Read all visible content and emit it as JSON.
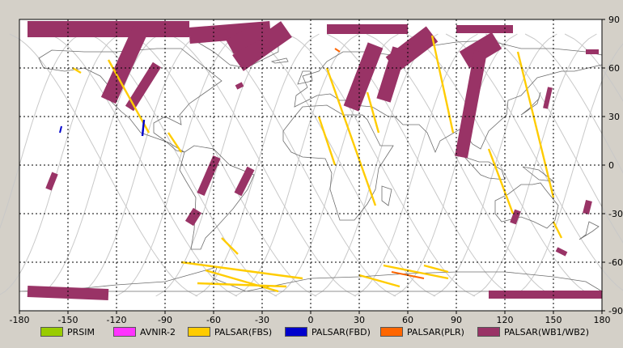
{
  "map": {
    "lon_min": -180,
    "lon_max": 180,
    "lat_min": -90,
    "lat_max": 90,
    "x_ticks": [
      "-180",
      "-150",
      "-120",
      "-90",
      "-60",
      "-30",
      "0",
      "30",
      "60",
      "90",
      "120",
      "150",
      "180"
    ],
    "y_ticks": [
      "90",
      "60",
      "30",
      "0",
      "-30",
      "-60",
      "-90"
    ],
    "grid": "dotted",
    "background": "#ffffff",
    "coastline_color": "#6e6e6e",
    "orbit_color": "#c8c8c8",
    "gridline_color": "#000000"
  },
  "legend": [
    {
      "label": "PRSIM",
      "color": "#99cc00"
    },
    {
      "label": "AVNIR-2",
      "color": "#ff33ff"
    },
    {
      "label": "PALSAR(FBS)",
      "color": "#ffcc00"
    },
    {
      "label": "PALSAR(FBD)",
      "color": "#0000cc"
    },
    {
      "label": "PALSAR(PLR)",
      "color": "#ff6600"
    },
    {
      "label": "PALSAR(WB1/WB2)",
      "color": "#993366"
    }
  ],
  "swaths": [
    {
      "mode": "PALSAR(WB1/WB2)",
      "lon1": -175,
      "lat1": 84,
      "lon2": -75,
      "lat2": 84,
      "width": 10
    },
    {
      "mode": "PALSAR(WB1/WB2)",
      "lon1": -105,
      "lat1": 84,
      "lon2": -125,
      "lat2": 40,
      "width": 10
    },
    {
      "mode": "PALSAR(WB1/WB2)",
      "lon1": -25,
      "lat1": 84,
      "lon2": -75,
      "lat2": 80,
      "width": 10
    },
    {
      "mode": "PALSAR(WB1/WB2)",
      "lon1": -15,
      "lat1": 84,
      "lon2": -45,
      "lat2": 63,
      "width": 12
    },
    {
      "mode": "PALSAR(WB1/WB2)",
      "lon1": -30,
      "lat1": 84,
      "lon2": -50,
      "lat2": 73,
      "width": 10
    },
    {
      "mode": "PALSAR(WB1/WB2)",
      "lon1": 10,
      "lat1": 84,
      "lon2": 60,
      "lat2": 84,
      "width": 6
    },
    {
      "mode": "PALSAR(WB1/WB2)",
      "lon1": 40,
      "lat1": 74,
      "lon2": 25,
      "lat2": 35,
      "width": 10
    },
    {
      "mode": "PALSAR(WB1/WB2)",
      "lon1": 75,
      "lat1": 81,
      "lon2": 50,
      "lat2": 62,
      "width": 12
    },
    {
      "mode": "PALSAR(WB1/WB2)",
      "lon1": 55,
      "lat1": 72,
      "lon2": 45,
      "lat2": 40,
      "width": 9
    },
    {
      "mode": "PALSAR(WB1/WB2)",
      "lon1": 90,
      "lat1": 84,
      "lon2": 125,
      "lat2": 84,
      "width": 5
    },
    {
      "mode": "PALSAR(WB1/WB2)",
      "lon1": 115,
      "lat1": 77,
      "lon2": 95,
      "lat2": 65,
      "width": 12
    },
    {
      "mode": "PALSAR(WB1/WB2)",
      "lon1": 105,
      "lat1": 70,
      "lon2": 93,
      "lat2": 5,
      "width": 8
    },
    {
      "mode": "PALSAR(WB1/WB2)",
      "lon1": -95,
      "lat1": 62,
      "lon2": -112,
      "lat2": 35,
      "width": 6
    },
    {
      "mode": "PALSAR(WB1/WB2)",
      "lon1": -58,
      "lat1": 5,
      "lon2": -68,
      "lat2": -18,
      "width": 5
    },
    {
      "mode": "PALSAR(WB1/WB2)",
      "lon1": -37,
      "lat1": -2,
      "lon2": -45,
      "lat2": -18,
      "width": 5
    },
    {
      "mode": "PALSAR(WB1/WB2)",
      "lon1": -70,
      "lat1": -28,
      "lon2": -75,
      "lat2": -36,
      "width": 6
    },
    {
      "mode": "PALSAR(WB1/WB2)",
      "lon1": -175,
      "lat1": -78,
      "lon2": -125,
      "lat2": -80,
      "width": 7
    },
    {
      "mode": "PALSAR(WB1/WB2)",
      "lon1": 110,
      "lat1": -80,
      "lon2": 180,
      "lat2": -80,
      "width": 5
    },
    {
      "mode": "PALSAR(WB1/WB2)",
      "lon1": -158,
      "lat1": -5,
      "lon2": -162,
      "lat2": -15,
      "width": 4
    },
    {
      "mode": "PALSAR(WB1/WB2)",
      "lon1": 128,
      "lat1": -28,
      "lon2": 125,
      "lat2": -36,
      "width": 4
    },
    {
      "mode": "PALSAR(WB1/WB2)",
      "lon1": 172,
      "lat1": -22,
      "lon2": 170,
      "lat2": -30,
      "width": 4
    },
    {
      "mode": "PALSAR(WB1/WB2)",
      "lon1": 152,
      "lat1": -52,
      "lon2": 158,
      "lat2": -55,
      "width": 3
    },
    {
      "mode": "PALSAR(WB1/WB2)",
      "lon1": 170,
      "lat1": 70,
      "lon2": 178,
      "lat2": 70,
      "width": 3
    },
    {
      "mode": "PALSAR(WB1/WB2)",
      "lon1": 148,
      "lat1": 48,
      "lon2": 145,
      "lat2": 35,
      "width": 3
    },
    {
      "mode": "PALSAR(WB1/WB2)",
      "lon1": -46,
      "lat1": 48,
      "lon2": -42,
      "lat2": 50,
      "width": 3
    },
    {
      "mode": "PALSAR(FBS)",
      "lon1": -147,
      "lat1": 60,
      "lon2": -142,
      "lat2": 57,
      "width": 1.2
    },
    {
      "mode": "PALSAR(FBS)",
      "lon1": -125,
      "lat1": 65,
      "lon2": -100,
      "lat2": 20,
      "width": 1.2
    },
    {
      "mode": "PALSAR(FBS)",
      "lon1": -88,
      "lat1": 20,
      "lon2": -80,
      "lat2": 8,
      "width": 1.2
    },
    {
      "mode": "PALSAR(FBS)",
      "lon1": -55,
      "lat1": -45,
      "lon2": -45,
      "lat2": -55,
      "width": 1.2
    },
    {
      "mode": "PALSAR(FBS)",
      "lon1": -80,
      "lat1": -60,
      "lon2": -5,
      "lat2": -70,
      "width": 1.2
    },
    {
      "mode": "PALSAR(FBS)",
      "lon1": -70,
      "lat1": -73,
      "lon2": -15,
      "lat2": -75,
      "width": 1.2
    },
    {
      "mode": "PALSAR(FBS)",
      "lon1": 10,
      "lat1": 60,
      "lon2": 40,
      "lat2": -25,
      "width": 1.2
    },
    {
      "mode": "PALSAR(FBS)",
      "lon1": 35,
      "lat1": 45,
      "lon2": 42,
      "lat2": 20,
      "width": 1.2
    },
    {
      "mode": "PALSAR(FBS)",
      "lon1": 5,
      "lat1": 30,
      "lon2": 15,
      "lat2": 0,
      "width": 1.2
    },
    {
      "mode": "PALSAR(FBS)",
      "lon1": 45,
      "lat1": -62,
      "lon2": 85,
      "lat2": -70,
      "width": 1.2
    },
    {
      "mode": "PALSAR(FBS)",
      "lon1": 30,
      "lat1": -68,
      "lon2": 55,
      "lat2": -75,
      "width": 1.2
    },
    {
      "mode": "PALSAR(FBS)",
      "lon1": 70,
      "lat1": -62,
      "lon2": 85,
      "lat2": -66,
      "width": 1.2
    },
    {
      "mode": "PALSAR(FBS)",
      "lon1": 75,
      "lat1": 80,
      "lon2": 88,
      "lat2": 20,
      "width": 1.2
    },
    {
      "mode": "PALSAR(FBS)",
      "lon1": 110,
      "lat1": 10,
      "lon2": 125,
      "lat2": -30,
      "width": 1.2
    },
    {
      "mode": "PALSAR(FBS)",
      "lon1": 128,
      "lat1": 70,
      "lon2": 150,
      "lat2": -20,
      "width": 1.2
    },
    {
      "mode": "PALSAR(FBS)",
      "lon1": 150,
      "lat1": -35,
      "lon2": 155,
      "lat2": -45,
      "width": 1.2
    },
    {
      "mode": "PALSAR(FBS)",
      "lon1": -65,
      "lat1": -65,
      "lon2": -20,
      "lat2": -78,
      "width": 1.2
    },
    {
      "mode": "PALSAR(FBD)",
      "lon1": -103,
      "lat1": 28,
      "lon2": -104,
      "lat2": 18,
      "width": 1.2
    },
    {
      "mode": "PALSAR(FBD)",
      "lon1": -154,
      "lat1": 24,
      "lon2": -155,
      "lat2": 20,
      "width": 1.0
    },
    {
      "mode": "PALSAR(PLR)",
      "lon1": 15,
      "lat1": 72,
      "lon2": 18,
      "lat2": 70,
      "width": 1.0
    },
    {
      "mode": "PALSAR(PLR)",
      "lon1": 50,
      "lat1": -66,
      "lon2": 70,
      "lat2": -70,
      "width": 1.0
    }
  ]
}
